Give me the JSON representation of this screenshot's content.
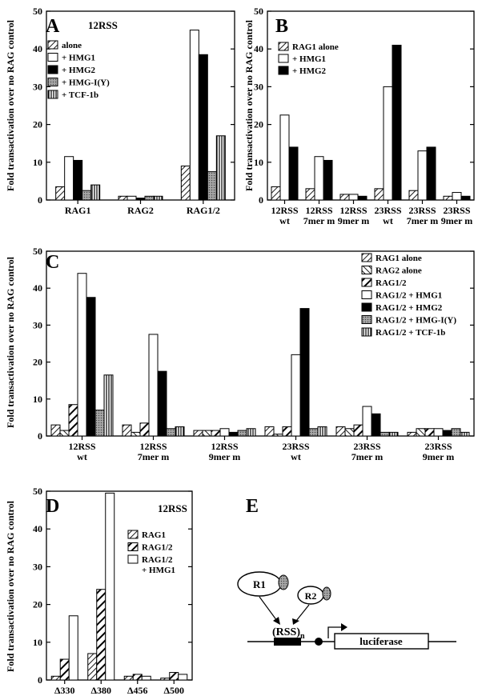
{
  "chart_data": [
    {
      "panel": "A",
      "type": "bar",
      "title": "12RSS",
      "ylabel": "Fold transactivation over no RAG control",
      "ylim": [
        0,
        50
      ],
      "yticks": [
        0,
        10,
        20,
        30,
        40,
        50
      ],
      "legend_position": "top-left",
      "categories": [
        [
          "RAG1"
        ],
        [
          "RAG2"
        ],
        [
          "RAG1/2"
        ]
      ],
      "series": [
        {
          "name": "alone",
          "pattern": "hatch",
          "values": [
            3.5,
            1,
            9
          ]
        },
        {
          "name": "+ HMG1",
          "pattern": "white",
          "values": [
            11.5,
            1,
            45
          ]
        },
        {
          "name": "+ HMG2",
          "pattern": "black",
          "values": [
            10.5,
            0.5,
            38.5
          ]
        },
        {
          "name": "+ HMG-I(Y)",
          "pattern": "gray",
          "values": [
            2.5,
            1,
            7.5
          ]
        },
        {
          "name": "+ TCF-1b",
          "pattern": "vlines",
          "values": [
            4,
            1,
            17
          ]
        }
      ]
    },
    {
      "panel": "B",
      "type": "bar",
      "title": "",
      "ylabel": "Fold transactivation over no RAG control",
      "ylim": [
        0,
        50
      ],
      "yticks": [
        0,
        10,
        20,
        30,
        40,
        50
      ],
      "legend_position": "top-left",
      "categories": [
        [
          "12RSS",
          "wt"
        ],
        [
          "12RSS",
          "7mer m"
        ],
        [
          "12RSS",
          "9mer m"
        ],
        [
          "23RSS",
          "wt"
        ],
        [
          "23RSS",
          "7mer m"
        ],
        [
          "23RSS",
          "9mer m"
        ]
      ],
      "series": [
        {
          "name": "RAG1 alone",
          "pattern": "hatch",
          "values": [
            3.5,
            3,
            1.5,
            3,
            2.5,
            1
          ]
        },
        {
          "name": "+ HMG1",
          "pattern": "white",
          "values": [
            22.5,
            11.5,
            1.5,
            30,
            13,
            2
          ]
        },
        {
          "name": "+ HMG2",
          "pattern": "black",
          "values": [
            14,
            10.5,
            1,
            41,
            14,
            1
          ]
        }
      ]
    },
    {
      "panel": "C",
      "type": "bar",
      "title": "",
      "ylabel": "Fold transactivation over no RAG control",
      "ylim": [
        0,
        50
      ],
      "yticks": [
        0,
        10,
        20,
        30,
        40,
        50
      ],
      "legend_position": "top-right",
      "categories": [
        [
          "12RSS",
          "wt"
        ],
        [
          "12RSS",
          "7mer m"
        ],
        [
          "12RSS",
          "9mer m"
        ],
        [
          "23RSS",
          "wt"
        ],
        [
          "23RSS",
          "7mer m"
        ],
        [
          "23RSS",
          "9mer m"
        ]
      ],
      "series": [
        {
          "name": "RAG1 alone",
          "pattern": "hatch",
          "values": [
            3,
            3,
            1.5,
            2.5,
            2.5,
            1
          ]
        },
        {
          "name": "RAG2 alone",
          "pattern": "hatch-rev",
          "values": [
            1.5,
            1,
            1.5,
            0.5,
            2,
            2
          ]
        },
        {
          "name": "RAG1/2",
          "pattern": "thick-hatch",
          "values": [
            8.5,
            3.5,
            1.5,
            2.5,
            3,
            2
          ]
        },
        {
          "name": "RAG1/2 + HMG1",
          "pattern": "white",
          "values": [
            44,
            27.5,
            2,
            22,
            8,
            2
          ]
        },
        {
          "name": "RAG1/2 + HMG2",
          "pattern": "black",
          "values": [
            37.5,
            17.5,
            1,
            34.5,
            6,
            1.5
          ]
        },
        {
          "name": "RAG1/2 + HMG-I(Y)",
          "pattern": "gray",
          "values": [
            7,
            2,
            1.5,
            2,
            1,
            2
          ]
        },
        {
          "name": "RAG1/2 + TCF-1b",
          "pattern": "vlines",
          "values": [
            16.5,
            2.5,
            2,
            2.5,
            1,
            1
          ]
        }
      ]
    },
    {
      "panel": "D",
      "type": "bar",
      "title": "12RSS",
      "ylabel": "Fold transactivation over no RAG control",
      "ylim": [
        0,
        50
      ],
      "yticks": [
        0,
        10,
        20,
        30,
        40,
        50
      ],
      "legend_position": "right",
      "categories": [
        [
          "Δ330"
        ],
        [
          "Δ380"
        ],
        [
          "Δ456"
        ],
        [
          "Δ500"
        ]
      ],
      "series": [
        {
          "name": "RAG1",
          "pattern": "hatch",
          "values": [
            1,
            7,
            1,
            0.5
          ]
        },
        {
          "name": "RAG1/2",
          "pattern": "thick-hatch",
          "values": [
            5.5,
            24,
            1.5,
            2
          ]
        },
        {
          "name": "RAG1/2 + HMG1",
          "pattern": "white",
          "values": [
            17,
            49.5,
            1,
            1.5
          ]
        }
      ]
    }
  ],
  "schematic": {
    "panel": "E",
    "r1_label": "R1",
    "r2_label": "R2",
    "rss_label": "(RSS)",
    "rss_subscript": "n",
    "reporter_label": "luciferase"
  }
}
